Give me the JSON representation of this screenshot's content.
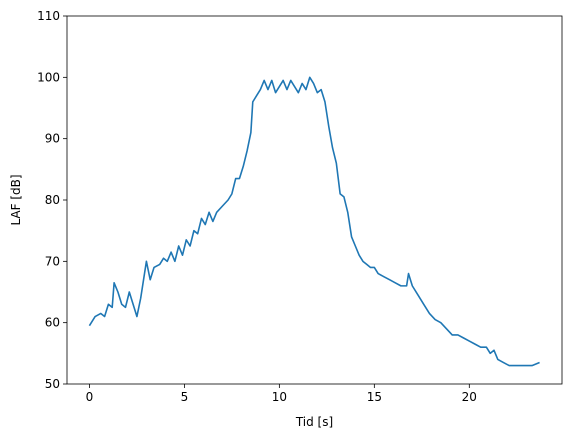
{
  "chart_data": {
    "type": "line",
    "xlabel": "Tid [s]",
    "ylabel": "LAF [dB]",
    "xlim": [
      -1.18,
      24.88
    ],
    "ylim": [
      50,
      110
    ],
    "xticks": [
      0,
      5,
      10,
      15,
      20
    ],
    "yticks": [
      50,
      60,
      70,
      80,
      90,
      100,
      110
    ],
    "series": [
      {
        "color": "#1f77b4",
        "x": [
          0,
          0.3,
          0.6,
          0.8,
          1.0,
          1.2,
          1.3,
          1.5,
          1.7,
          1.9,
          2.1,
          2.3,
          2.5,
          2.7,
          2.9,
          3.0,
          3.2,
          3.4,
          3.7,
          3.9,
          4.1,
          4.3,
          4.5,
          4.7,
          4.9,
          5.1,
          5.3,
          5.5,
          5.7,
          5.9,
          6.1,
          6.3,
          6.5,
          6.7,
          7.0,
          7.3,
          7.5,
          7.7,
          7.9,
          8.1,
          8.3,
          8.5,
          8.6,
          8.8,
          9.0,
          9.2,
          9.4,
          9.6,
          9.8,
          10.0,
          10.2,
          10.4,
          10.6,
          10.8,
          11.0,
          11.2,
          11.4,
          11.6,
          11.8,
          12.0,
          12.2,
          12.4,
          12.6,
          12.8,
          13.0,
          13.2,
          13.4,
          13.6,
          13.8,
          14.0,
          14.2,
          14.4,
          14.6,
          14.8,
          15.0,
          15.2,
          15.5,
          15.8,
          16.1,
          16.4,
          16.7,
          16.8,
          17.0,
          17.3,
          17.6,
          17.9,
          18.2,
          18.5,
          18.8,
          19.1,
          19.4,
          19.7,
          20.0,
          20.3,
          20.6,
          20.9,
          21.1,
          21.3,
          21.5,
          21.8,
          22.1,
          22.4,
          22.7,
          23.0,
          23.3,
          23.7
        ],
        "values": [
          59.5,
          61,
          61.5,
          61,
          63,
          62.5,
          66.5,
          65,
          63,
          62.5,
          65,
          63,
          61,
          64,
          68,
          70,
          67,
          69,
          69.5,
          70.5,
          70,
          71.5,
          70,
          72.5,
          71,
          73.5,
          72.5,
          75,
          74.5,
          77,
          76,
          78,
          76.5,
          78,
          79,
          80,
          81,
          83.5,
          83.5,
          85.5,
          88,
          91,
          96,
          97,
          98,
          99.5,
          98,
          99.5,
          97.5,
          98.5,
          99.5,
          98,
          99.5,
          98.5,
          97.5,
          99,
          98,
          100,
          99,
          97.5,
          98,
          96,
          92,
          88.5,
          86,
          81,
          80.5,
          78,
          74,
          72.5,
          71,
          70,
          69.5,
          69,
          69,
          68,
          67.5,
          67,
          66.5,
          66,
          66,
          68,
          66,
          64.5,
          63,
          61.5,
          60.5,
          60,
          59,
          58,
          58,
          57.5,
          57,
          56.5,
          56,
          56,
          55,
          55.5,
          54,
          53.5,
          53,
          53,
          53,
          53,
          53,
          53.5
        ]
      }
    ]
  }
}
